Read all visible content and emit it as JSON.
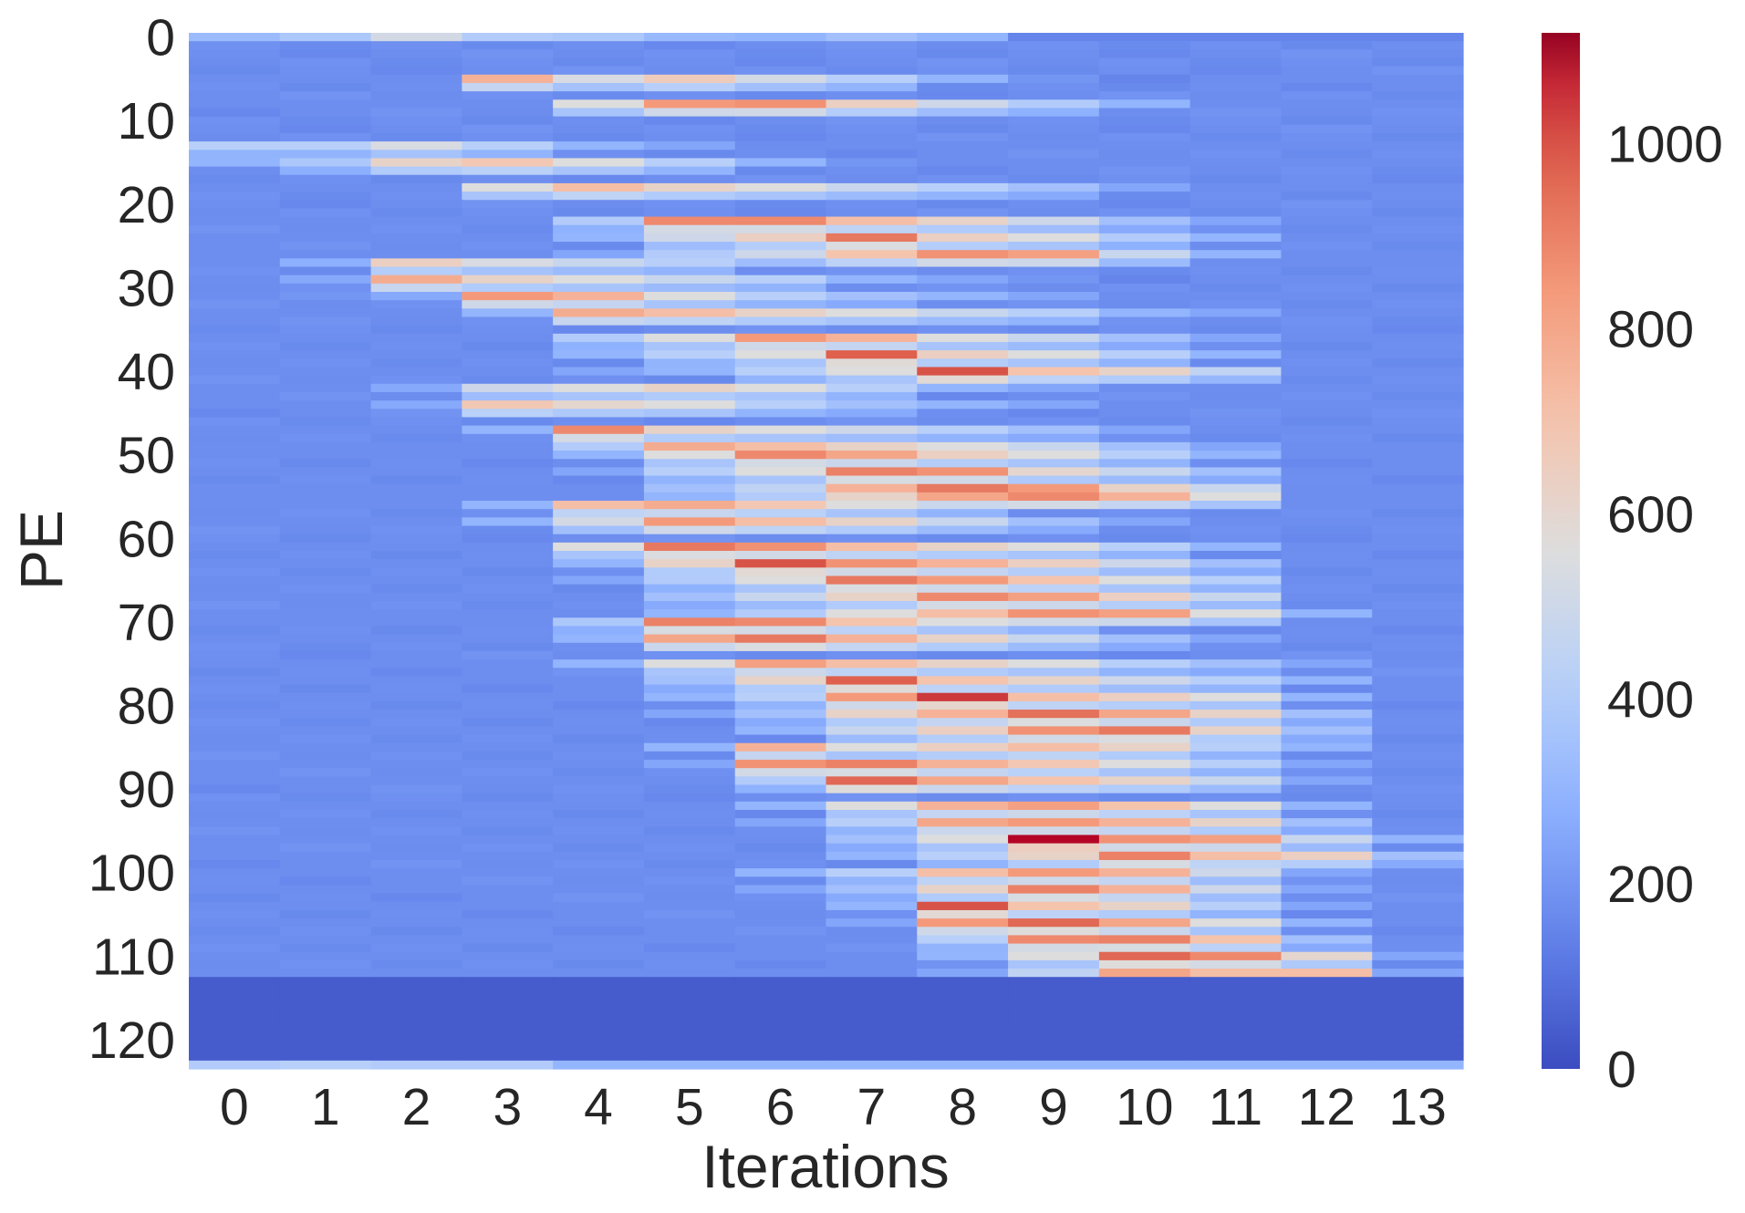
{
  "chart_data": {
    "type": "heatmap",
    "title": "",
    "xlabel": "Iterations",
    "ylabel": "PE",
    "x_categories": [
      "0",
      "1",
      "2",
      "3",
      "4",
      "5",
      "6",
      "7",
      "8",
      "9",
      "10",
      "11",
      "12",
      "13"
    ],
    "y_tick_labels": [
      "0",
      "10",
      "20",
      "30",
      "40",
      "50",
      "60",
      "70",
      "80",
      "90",
      "100",
      "110",
      "120"
    ],
    "n_rows": 124,
    "colormap": "coolwarm",
    "color_range": [
      0,
      1120
    ],
    "colorbar_ticks": [
      "0",
      "200",
      "400",
      "600",
      "800",
      "1000"
    ],
    "grid": false,
    "legend": "colorbar-right",
    "colors": {
      "low": "#3b4cc0",
      "mid": "#dddddd",
      "high": "#b40426",
      "max": "#8b0020"
    },
    "baseline_value": 175,
    "idle_rows": {
      "from": 113,
      "to": 123,
      "value": 40
    },
    "row_overrides": {
      "0": [
        330,
        380,
        520,
        400,
        380,
        320,
        300,
        350,
        300,
        150,
        150,
        150,
        150,
        150
      ],
      "123": [
        400,
        420,
        400,
        400,
        300,
        300,
        300,
        300,
        300,
        300,
        300,
        300,
        300,
        300
      ]
    },
    "bands": [
      {
        "row": 13,
        "values": [
          420,
          420,
          540,
          420,
          300,
          250,
          175,
          175,
          175,
          175,
          175,
          175,
          175,
          175
        ]
      },
      {
        "row": 15,
        "values": [
          300,
          380,
          620,
          680,
          560,
          420,
          300,
          200,
          175,
          175,
          175,
          175,
          175,
          175
        ]
      },
      {
        "row": 27,
        "values": [
          175,
          280,
          640,
          540,
          480,
          420,
          300,
          300,
          250,
          200,
          150,
          175,
          175,
          175
        ]
      },
      {
        "row": 29,
        "values": [
          175,
          260,
          780,
          620,
          560,
          480,
          420,
          300,
          250,
          200,
          150,
          175,
          175,
          175
        ]
      },
      {
        "row": 31,
        "values": [
          175,
          200,
          260,
          840,
          760,
          560,
          420,
          350,
          300,
          250,
          175,
          175,
          175,
          175
        ]
      },
      {
        "row": 42,
        "values": [
          175,
          175,
          260,
          500,
          560,
          620,
          560,
          420,
          300,
          250,
          175,
          175,
          175,
          175
        ]
      },
      {
        "row": 44,
        "values": [
          175,
          175,
          260,
          680,
          600,
          560,
          420,
          350,
          300,
          250,
          175,
          175,
          175,
          175
        ]
      },
      {
        "row": 56,
        "values": [
          175,
          175,
          175,
          300,
          720,
          780,
          680,
          560,
          420,
          300,
          200,
          175,
          175,
          175
        ]
      },
      {
        "row": 58,
        "values": [
          175,
          175,
          175,
          300,
          520,
          840,
          720,
          620,
          480,
          350,
          250,
          175,
          175,
          175
        ]
      },
      {
        "row": 70,
        "values": [
          175,
          175,
          175,
          175,
          380,
          900,
          880,
          700,
          560,
          420,
          300,
          250,
          175,
          175
        ]
      },
      {
        "row": 72,
        "values": [
          175,
          175,
          175,
          175,
          300,
          800,
          920,
          760,
          620,
          480,
          350,
          250,
          175,
          175
        ]
      },
      {
        "row": 5,
        "values": [
          175,
          175,
          175,
          760,
          540,
          660,
          520,
          420,
          300,
          200,
          150,
          175,
          175,
          175
        ]
      },
      {
        "row": 8,
        "values": [
          175,
          175,
          175,
          175,
          560,
          840,
          860,
          640,
          500,
          400,
          300,
          175,
          175,
          175
        ]
      },
      {
        "row": 18,
        "values": [
          175,
          175,
          175,
          560,
          720,
          620,
          560,
          480,
          420,
          350,
          250,
          175,
          175,
          175
        ]
      },
      {
        "row": 22,
        "values": [
          175,
          175,
          175,
          175,
          400,
          880,
          880,
          720,
          620,
          500,
          350,
          250,
          175,
          175
        ]
      },
      {
        "row": 24,
        "values": [
          175,
          175,
          175,
          175,
          300,
          500,
          640,
          920,
          640,
          560,
          400,
          300,
          175,
          175
        ]
      },
      {
        "row": 26,
        "values": [
          175,
          175,
          175,
          175,
          250,
          400,
          500,
          700,
          860,
          820,
          480,
          300,
          175,
          175
        ]
      },
      {
        "row": 33,
        "values": [
          175,
          175,
          175,
          300,
          780,
          720,
          620,
          560,
          480,
          420,
          300,
          250,
          175,
          175
        ]
      },
      {
        "row": 36,
        "values": [
          175,
          175,
          175,
          175,
          400,
          560,
          840,
          760,
          560,
          480,
          350,
          250,
          175,
          175
        ]
      },
      {
        "row": 38,
        "values": [
          175,
          175,
          175,
          175,
          300,
          420,
          560,
          980,
          640,
          560,
          420,
          300,
          175,
          175
        ]
      },
      {
        "row": 40,
        "values": [
          175,
          175,
          175,
          175,
          250,
          300,
          420,
          560,
          1000,
          700,
          620,
          450,
          175,
          175
        ]
      },
      {
        "row": 47,
        "values": [
          175,
          175,
          175,
          300,
          880,
          620,
          560,
          500,
          420,
          350,
          250,
          175,
          175,
          175
        ]
      },
      {
        "row": 49,
        "values": [
          175,
          175,
          175,
          175,
          400,
          780,
          720,
          620,
          560,
          480,
          350,
          250,
          175,
          175
        ]
      },
      {
        "row": 50,
        "values": [
          175,
          175,
          175,
          175,
          300,
          560,
          880,
          800,
          640,
          560,
          420,
          300,
          175,
          175
        ]
      },
      {
        "row": 52,
        "values": [
          175,
          175,
          175,
          175,
          250,
          420,
          560,
          900,
          860,
          600,
          480,
          350,
          175,
          175
        ]
      },
      {
        "row": 54,
        "values": [
          175,
          175,
          175,
          175,
          175,
          350,
          450,
          760,
          920,
          840,
          620,
          480,
          175,
          175
        ]
      },
      {
        "row": 55,
        "values": [
          175,
          175,
          175,
          175,
          175,
          300,
          400,
          620,
          800,
          880,
          760,
          560,
          175,
          175
        ]
      },
      {
        "row": 61,
        "values": [
          175,
          175,
          175,
          175,
          560,
          920,
          860,
          720,
          620,
          560,
          420,
          300,
          175,
          175
        ]
      },
      {
        "row": 63,
        "values": [
          175,
          175,
          175,
          175,
          300,
          620,
          1000,
          860,
          760,
          640,
          500,
          350,
          175,
          175
        ]
      },
      {
        "row": 65,
        "values": [
          175,
          175,
          175,
          175,
          250,
          400,
          560,
          920,
          840,
          700,
          560,
          420,
          175,
          175
        ]
      },
      {
        "row": 67,
        "values": [
          175,
          175,
          175,
          175,
          175,
          350,
          480,
          620,
          880,
          820,
          640,
          480,
          175,
          175
        ]
      },
      {
        "row": 69,
        "values": [
          175,
          175,
          175,
          175,
          175,
          300,
          400,
          560,
          720,
          860,
          820,
          560,
          300,
          175
        ]
      },
      {
        "row": 75,
        "values": [
          175,
          175,
          175,
          175,
          300,
          560,
          820,
          720,
          620,
          560,
          420,
          350,
          250,
          175
        ]
      },
      {
        "row": 77,
        "values": [
          175,
          175,
          175,
          175,
          175,
          350,
          620,
          980,
          700,
          620,
          500,
          420,
          300,
          175
        ]
      },
      {
        "row": 79,
        "values": [
          175,
          175,
          175,
          175,
          175,
          300,
          420,
          840,
          1040,
          720,
          640,
          560,
          300,
          175
        ]
      },
      {
        "row": 81,
        "values": [
          175,
          175,
          175,
          175,
          175,
          250,
          350,
          620,
          760,
          940,
          800,
          620,
          350,
          175
        ]
      },
      {
        "row": 83,
        "values": [
          175,
          175,
          175,
          175,
          175,
          175,
          300,
          480,
          640,
          860,
          920,
          620,
          350,
          175
        ]
      },
      {
        "row": 85,
        "values": [
          175,
          175,
          175,
          175,
          175,
          300,
          760,
          560,
          640,
          720,
          620,
          420,
          300,
          175
        ]
      },
      {
        "row": 87,
        "values": [
          175,
          175,
          175,
          175,
          175,
          250,
          860,
          900,
          760,
          680,
          560,
          420,
          250,
          175
        ]
      },
      {
        "row": 89,
        "values": [
          175,
          175,
          175,
          175,
          175,
          175,
          400,
          960,
          800,
          700,
          620,
          480,
          250,
          175
        ]
      },
      {
        "row": 92,
        "values": [
          175,
          175,
          175,
          175,
          175,
          175,
          300,
          560,
          760,
          820,
          700,
          560,
          300,
          175
        ]
      },
      {
        "row": 94,
        "values": [
          175,
          175,
          175,
          175,
          175,
          175,
          250,
          420,
          800,
          840,
          760,
          620,
          350,
          175
        ]
      },
      {
        "row": 96,
        "values": [
          175,
          175,
          175,
          175,
          175,
          175,
          175,
          350,
          560,
          1120,
          860,
          820,
          480,
          300
        ]
      },
      {
        "row": 98,
        "values": [
          175,
          175,
          175,
          175,
          175,
          175,
          175,
          300,
          420,
          620,
          900,
          720,
          640,
          350
        ]
      },
      {
        "row": 100,
        "values": [
          175,
          175,
          175,
          175,
          175,
          175,
          300,
          420,
          720,
          840,
          760,
          500,
          250,
          175
        ]
      },
      {
        "row": 102,
        "values": [
          175,
          175,
          175,
          175,
          175,
          175,
          250,
          350,
          620,
          900,
          760,
          500,
          250,
          175
        ]
      },
      {
        "row": 104,
        "values": [
          175,
          175,
          175,
          175,
          175,
          175,
          175,
          300,
          1000,
          700,
          620,
          420,
          250,
          175
        ]
      },
      {
        "row": 106,
        "values": [
          175,
          175,
          175,
          175,
          175,
          175,
          175,
          250,
          840,
          960,
          800,
          560,
          300,
          175
        ]
      },
      {
        "row": 108,
        "values": [
          175,
          175,
          175,
          175,
          175,
          175,
          175,
          175,
          420,
          880,
          900,
          700,
          350,
          175
        ]
      },
      {
        "row": 110,
        "values": [
          175,
          175,
          175,
          175,
          175,
          175,
          175,
          175,
          300,
          560,
          960,
          880,
          600,
          250
        ]
      },
      {
        "row": 112,
        "values": [
          175,
          175,
          175,
          175,
          175,
          175,
          175,
          175,
          250,
          450,
          800,
          720,
          720,
          250
        ]
      }
    ]
  }
}
